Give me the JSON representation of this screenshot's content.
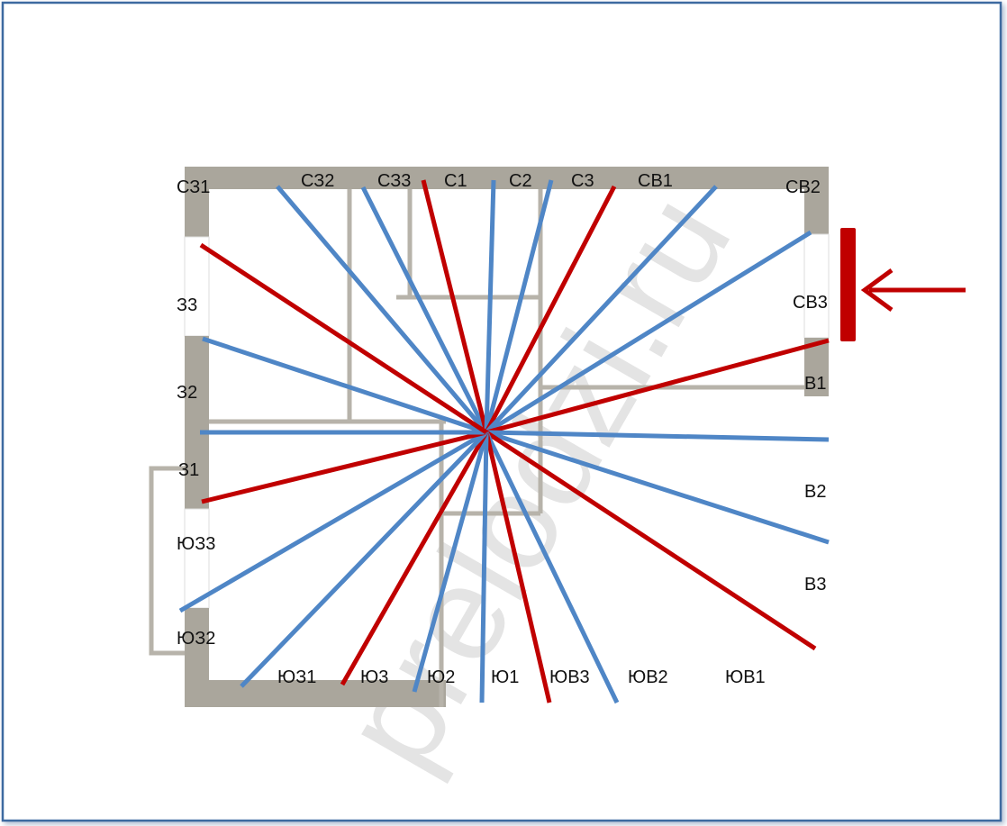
{
  "labels": [
    "СЗ1",
    "СЗ2",
    "СЗ3",
    "С1",
    "С2",
    "С3",
    "СВ1",
    "СВ2",
    "СВ3",
    "В1",
    "В2",
    "В3",
    "ЮВ1",
    "ЮВ2",
    "ЮВ3",
    "Ю1",
    "Ю2",
    "Ю3",
    "ЮЗ1",
    "ЮЗ2",
    "ЮЗ3",
    "З1",
    "З2",
    "З3"
  ],
  "watermark": "prelodzi.ru"
}
